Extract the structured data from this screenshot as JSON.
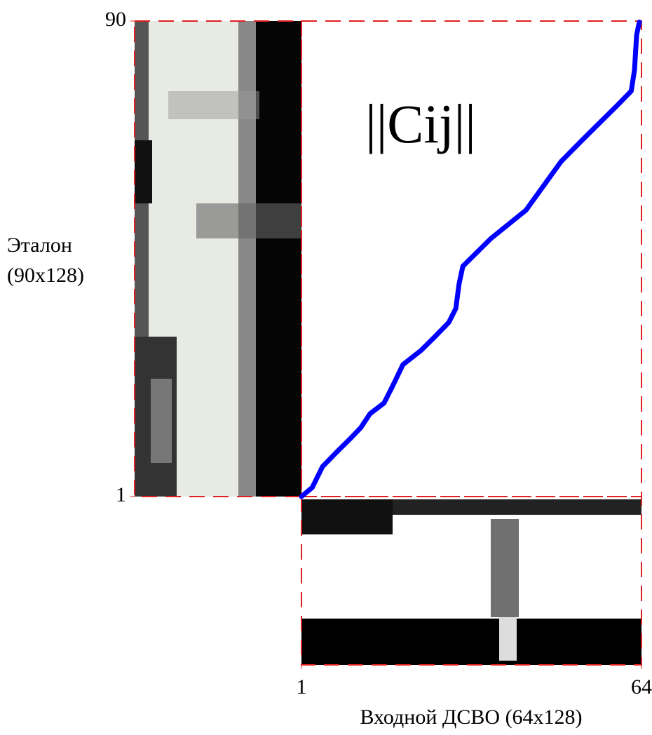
{
  "chart_data": {
    "type": "line",
    "annotation": "||Cij||",
    "x_label": "Входной ДСВО (64x128)",
    "y_label": [
      "Эталон",
      "(90x128)"
    ],
    "xlim": [
      1,
      64
    ],
    "xticks": [
      1,
      64
    ],
    "ylim": [
      1,
      90
    ],
    "yticks": [
      1,
      90
    ],
    "series": [
      {
        "color": "#0000ff",
        "x": [
          1,
          3,
          4.9,
          7.5,
          10.1,
          12,
          13.7,
          16.3,
          17.9,
          19.8,
          23.1,
          25.7,
          28.3,
          29.6,
          30.2,
          30.9,
          33.5,
          36.1,
          42.6,
          49.1,
          53,
          56.9,
          59.5,
          62.1,
          62.7,
          63.1,
          63.6
        ],
        "values": [
          1,
          2.7,
          6.6,
          9.3,
          11.9,
          13.9,
          16.5,
          18.5,
          21.7,
          25.7,
          28.3,
          30.9,
          33.6,
          36.2,
          40.8,
          44.1,
          46.7,
          49.3,
          54.6,
          63.7,
          67.7,
          71.6,
          74.2,
          76.9,
          80.8,
          87.4,
          89.8
        ]
      }
    ]
  }
}
